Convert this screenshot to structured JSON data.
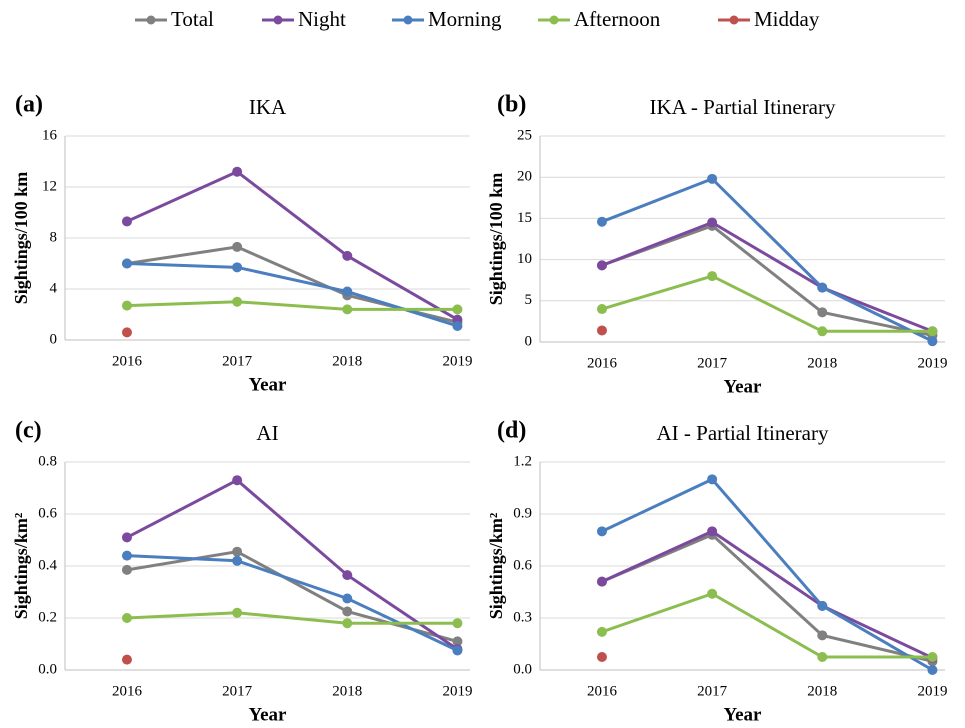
{
  "legend": {
    "items": [
      {
        "name": "Total",
        "color": "#808080"
      },
      {
        "name": "Night",
        "color": "#7b4a9e"
      },
      {
        "name": "Morning",
        "color": "#4a7ebf"
      },
      {
        "name": "Afternoon",
        "color": "#8cbd4f"
      },
      {
        "name": "Midday",
        "color": "#c0504d"
      }
    ]
  },
  "chart_data": [
    {
      "type": "line",
      "label": "(a)",
      "title": "IKA",
      "x_label": "Year",
      "y_label": "Sightings/100 km",
      "categories": [
        "2016",
        "2017",
        "2018",
        "2019"
      ],
      "ylim": [
        0,
        16
      ],
      "yticks": [
        0,
        4,
        8,
        12,
        16
      ],
      "grid": true,
      "series": [
        {
          "values": [
            6.0,
            7.3,
            3.5,
            1.4
          ]
        },
        {
          "values": [
            9.3,
            13.2,
            6.6,
            1.6
          ]
        },
        {
          "values": [
            6.0,
            5.7,
            3.8,
            1.1
          ]
        },
        {
          "values": [
            2.7,
            3.0,
            2.4,
            2.4
          ]
        },
        {
          "values": [
            0.6,
            null,
            null,
            null
          ]
        }
      ]
    },
    {
      "type": "line",
      "label": "(b)",
      "title": "IKA - Partial Itinerary",
      "x_label": "Year",
      "y_label": "Sightings/100 km",
      "categories": [
        "2016",
        "2017",
        "2018",
        "2019"
      ],
      "ylim": [
        0,
        25
      ],
      "yticks": [
        0,
        5,
        10,
        15,
        20,
        25
      ],
      "grid": true,
      "series": [
        {
          "values": [
            9.3,
            14.1,
            3.6,
            0.8
          ]
        },
        {
          "values": [
            9.3,
            14.5,
            6.6,
            1.3
          ]
        },
        {
          "values": [
            14.6,
            19.8,
            6.6,
            0.1
          ]
        },
        {
          "values": [
            4.0,
            8.0,
            1.3,
            1.3
          ]
        },
        {
          "values": [
            1.4,
            null,
            null,
            null
          ]
        }
      ]
    },
    {
      "type": "line",
      "label": "(c)",
      "title": "AI",
      "x_label": "Year",
      "y_label": "Sightings/km²",
      "categories": [
        "2016",
        "2017",
        "2018",
        "2019"
      ],
      "ylim": [
        0,
        0.8
      ],
      "yticks": [
        {
          "value": 0,
          "label": "0.0"
        },
        0.2,
        0.4,
        0.6,
        0.8
      ],
      "grid": true,
      "series": [
        {
          "values": [
            0.385,
            0.455,
            0.225,
            0.11
          ]
        },
        {
          "values": [
            0.51,
            0.73,
            0.365,
            0.08
          ]
        },
        {
          "values": [
            0.44,
            0.42,
            0.275,
            0.075
          ]
        },
        {
          "values": [
            0.2,
            0.22,
            0.18,
            0.18
          ]
        },
        {
          "values": [
            0.04,
            null,
            null,
            null
          ]
        }
      ]
    },
    {
      "type": "line",
      "label": "(d)",
      "title": "AI - Partial Itinerary",
      "x_label": "Year",
      "y_label": "Sightings/km²",
      "categories": [
        "2016",
        "2017",
        "2018",
        "2019"
      ],
      "ylim": [
        0,
        1.2
      ],
      "yticks": [
        {
          "value": 0,
          "label": "0.0"
        },
        0.3,
        0.6,
        0.9,
        1.2
      ],
      "grid": true,
      "series": [
        {
          "values": [
            0.51,
            0.78,
            0.2,
            0.05
          ]
        },
        {
          "values": [
            0.51,
            0.8,
            0.37,
            0.07
          ]
        },
        {
          "values": [
            0.8,
            1.1,
            0.37,
            0.0
          ]
        },
        {
          "values": [
            0.22,
            0.44,
            0.075,
            0.075
          ]
        },
        {
          "values": [
            0.075,
            null,
            null,
            null
          ]
        }
      ]
    }
  ]
}
